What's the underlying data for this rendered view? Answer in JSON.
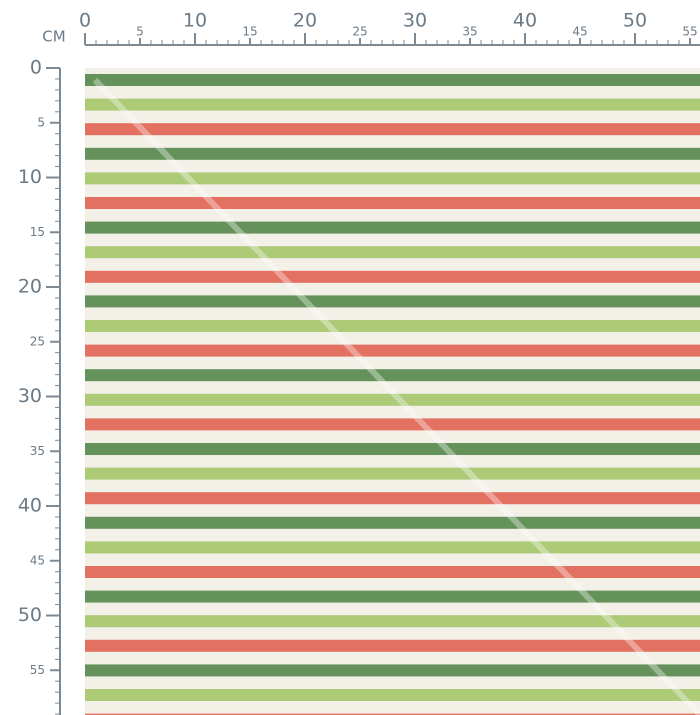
{
  "ruler": {
    "unit": "CM",
    "top": [
      0,
      5,
      10,
      15,
      20,
      25,
      30,
      35,
      40,
      45,
      50,
      55
    ],
    "left": [
      0,
      5,
      10,
      15,
      20,
      25,
      30,
      35,
      40,
      45,
      50,
      55
    ]
  }
}
